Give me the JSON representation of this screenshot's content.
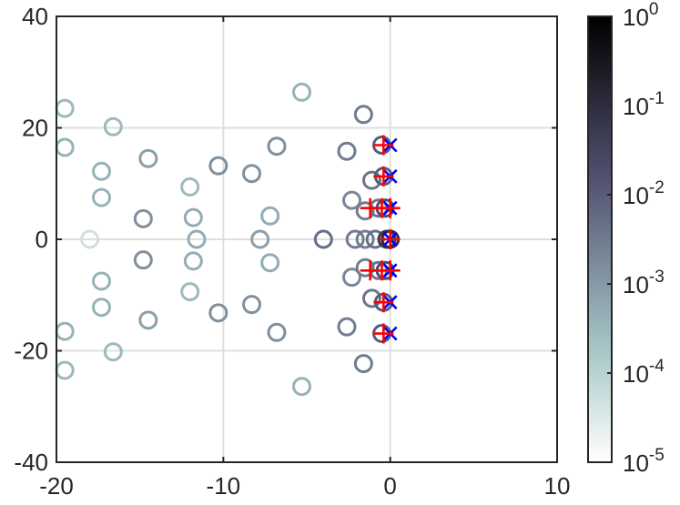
{
  "chart_data": {
    "type": "scatter",
    "title": "",
    "xlabel": "",
    "ylabel": "",
    "xlim": [
      -20,
      10
    ],
    "ylim": [
      -40,
      40
    ],
    "x_ticks": [
      {
        "value": -20,
        "label": "-20"
      },
      {
        "value": -10,
        "label": "-10"
      },
      {
        "value": 0,
        "label": "0"
      },
      {
        "value": 10,
        "label": "10"
      }
    ],
    "y_ticks": [
      {
        "value": -40,
        "label": "-40"
      },
      {
        "value": -20,
        "label": "-20"
      },
      {
        "value": 0,
        "label": "0"
      },
      {
        "value": 20,
        "label": "20"
      },
      {
        "value": 40,
        "label": "40"
      }
    ],
    "grid": true,
    "colorbar": {
      "scale": "log",
      "range": [
        1e-05,
        1
      ],
      "colormap": "bone (reversed)",
      "low_color": "#ffffff",
      "high_color": "#000000",
      "ticks": [
        {
          "base": "10",
          "exp": "-5",
          "value": 1e-05
        },
        {
          "base": "10",
          "exp": "-4",
          "value": 0.0001
        },
        {
          "base": "10",
          "exp": "-3",
          "value": 0.001
        },
        {
          "base": "10",
          "exp": "-2",
          "value": 0.01
        },
        {
          "base": "10",
          "exp": "-1",
          "value": 0.1
        },
        {
          "base": "10",
          "exp": "0",
          "value": 1
        }
      ]
    },
    "series": [
      {
        "marker": "circle",
        "color_by_value": true,
        "points": [
          {
            "x": -19.5,
            "y": 23.5,
            "c": 0.0003
          },
          {
            "x": -19.5,
            "y": 16.5,
            "c": 0.0004
          },
          {
            "x": -18,
            "y": 0,
            "c": 5e-05
          },
          {
            "x": -19.5,
            "y": -16.5,
            "c": 0.0004
          },
          {
            "x": -19.5,
            "y": -23.5,
            "c": 0.0003
          },
          {
            "x": -17.3,
            "y": 12.2,
            "c": 0.0004
          },
          {
            "x": -17.3,
            "y": 7.5,
            "c": 0.0004
          },
          {
            "x": -17.3,
            "y": -7.5,
            "c": 0.0004
          },
          {
            "x": -17.3,
            "y": -12.2,
            "c": 0.0004
          },
          {
            "x": -16.6,
            "y": 20.2,
            "c": 0.0003
          },
          {
            "x": -16.6,
            "y": -20.2,
            "c": 0.0003
          },
          {
            "x": -14.8,
            "y": 3.7,
            "c": 0.0015
          },
          {
            "x": -14.8,
            "y": -3.7,
            "c": 0.0015
          },
          {
            "x": -14.5,
            "y": 14.5,
            "c": 0.0008
          },
          {
            "x": -14.5,
            "y": -14.5,
            "c": 0.0008
          },
          {
            "x": -12,
            "y": 9.4,
            "c": 0.0003
          },
          {
            "x": -12,
            "y": -9.4,
            "c": 0.0003
          },
          {
            "x": -11.8,
            "y": 3.9,
            "c": 0.0005
          },
          {
            "x": -11.8,
            "y": -3.9,
            "c": 0.0005
          },
          {
            "x": -11.6,
            "y": 0,
            "c": 0.0005
          },
          {
            "x": -10.3,
            "y": 13.2,
            "c": 0.0015
          },
          {
            "x": -10.3,
            "y": -13.2,
            "c": 0.0015
          },
          {
            "x": -8.3,
            "y": 11.8,
            "c": 0.0015
          },
          {
            "x": -8.3,
            "y": -11.7,
            "c": 0.0015
          },
          {
            "x": -7.8,
            "y": 0,
            "c": 0.0008
          },
          {
            "x": -7.2,
            "y": 4.2,
            "c": 0.0005
          },
          {
            "x": -7.2,
            "y": -4.2,
            "c": 0.0005
          },
          {
            "x": -6.8,
            "y": 16.7,
            "c": 0.0015
          },
          {
            "x": -6.8,
            "y": -16.7,
            "c": 0.0015
          },
          {
            "x": -5.3,
            "y": 26.4,
            "c": 0.0004
          },
          {
            "x": -5.3,
            "y": -26.4,
            "c": 0.0004
          },
          {
            "x": -4,
            "y": 0,
            "c": 0.005
          },
          {
            "x": -2.6,
            "y": 15.8,
            "c": 0.003
          },
          {
            "x": -2.6,
            "y": -15.7,
            "c": 0.003
          },
          {
            "x": -2.3,
            "y": 7,
            "c": 0.002
          },
          {
            "x": -2.3,
            "y": -6.8,
            "c": 0.002
          },
          {
            "x": -2.1,
            "y": 0,
            "c": 0.003
          },
          {
            "x": -1.6,
            "y": 22.4,
            "c": 0.003
          },
          {
            "x": -1.6,
            "y": -22.3,
            "c": 0.003
          },
          {
            "x": -1.5,
            "y": 5.1,
            "c": 0.003
          },
          {
            "x": -1.5,
            "y": -5.1,
            "c": 0.003
          },
          {
            "x": -1.5,
            "y": 0,
            "c": 0.003
          },
          {
            "x": -1.1,
            "y": 10.6,
            "c": 0.004
          },
          {
            "x": -1.1,
            "y": -10.6,
            "c": 0.004
          },
          {
            "x": -0.9,
            "y": 0,
            "c": 0.005
          },
          {
            "x": -0.7,
            "y": 5.6,
            "c": 0.004
          },
          {
            "x": -0.7,
            "y": -5.6,
            "c": 0.004
          },
          {
            "x": -0.5,
            "y": 16.9,
            "c": 0.01
          },
          {
            "x": -0.5,
            "y": -16.9,
            "c": 0.01
          },
          {
            "x": -0.4,
            "y": 11.3,
            "c": 0.01
          },
          {
            "x": -0.4,
            "y": -11.3,
            "c": 0.01
          },
          {
            "x": -0.3,
            "y": 5.6,
            "c": 0.02
          },
          {
            "x": -0.3,
            "y": -5.6,
            "c": 0.02
          },
          {
            "x": -0.2,
            "y": 0,
            "c": 0.05
          },
          {
            "x": 0,
            "y": 0,
            "c": 0.1
          }
        ]
      },
      {
        "marker": "x",
        "color": "#0000ff",
        "points": [
          {
            "x": 0,
            "y": 16.9
          },
          {
            "x": 0,
            "y": 11.3
          },
          {
            "x": 0,
            "y": 5.6
          },
          {
            "x": 0,
            "y": 0
          },
          {
            "x": 0,
            "y": -5.6
          },
          {
            "x": 0,
            "y": -11.3
          },
          {
            "x": 0,
            "y": -16.9
          }
        ]
      },
      {
        "marker": "plus",
        "color": "#ff0000",
        "points": [
          {
            "x": -0.4,
            "y": 16.9
          },
          {
            "x": -0.4,
            "y": 11.3
          },
          {
            "x": -1.2,
            "y": 5.6
          },
          {
            "x": -0.5,
            "y": 5.6
          },
          {
            "x": 0,
            "y": 5.6
          },
          {
            "x": 0,
            "y": 0
          },
          {
            "x": -1.2,
            "y": -5.6
          },
          {
            "x": -0.5,
            "y": -5.6
          },
          {
            "x": 0,
            "y": -5.6
          },
          {
            "x": -0.4,
            "y": -11.3
          },
          {
            "x": -0.4,
            "y": -16.9
          }
        ]
      }
    ]
  }
}
